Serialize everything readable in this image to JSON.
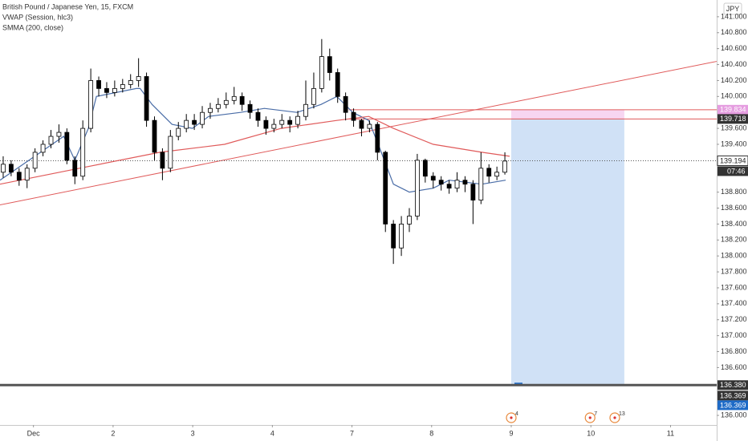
{
  "chart_data": {
    "type": "candlestick",
    "title": "British Pound / Japanese Yen, 15, FXCM",
    "currency": "JPY",
    "candle_color": "#000000",
    "x": [
      -0.38,
      -0.28,
      -0.18,
      -0.08,
      0.02,
      0.12,
      0.22,
      0.32,
      0.42,
      0.52,
      0.62,
      0.72,
      0.82,
      0.92,
      1.02,
      1.12,
      1.22,
      1.32,
      1.42,
      1.52,
      1.62,
      1.72,
      1.82,
      1.92,
      2.02,
      2.12,
      2.22,
      2.32,
      2.42,
      2.52,
      2.62,
      2.72,
      2.82,
      2.92,
      3.02,
      3.12,
      3.22,
      3.32,
      3.42,
      3.52,
      3.62,
      3.72,
      3.82,
      3.92,
      4.02,
      4.12,
      4.22,
      4.32,
      4.42,
      4.52,
      4.62,
      4.72,
      4.82,
      4.92,
      5.02,
      5.12,
      5.22,
      5.32,
      5.42,
      5.52,
      5.62,
      5.72,
      5.82,
      5.92
    ],
    "open": [
      139.05,
      139.15,
      139.05,
      138.95,
      139.1,
      139.3,
      139.4,
      139.5,
      139.55,
      139.2,
      139.0,
      139.6,
      140.2,
      140.1,
      140.05,
      140.1,
      140.15,
      140.2,
      140.25,
      139.7,
      139.3,
      139.1,
      139.5,
      139.6,
      139.7,
      139.65,
      139.8,
      139.85,
      139.9,
      139.95,
      140.0,
      139.9,
      139.8,
      139.7,
      139.6,
      139.65,
      139.7,
      139.65,
      139.75,
      139.9,
      140.1,
      140.5,
      140.3,
      140.0,
      139.8,
      139.7,
      139.6,
      139.65,
      139.3,
      138.4,
      138.1,
      138.4,
      138.5,
      139.2,
      139.0,
      138.95,
      138.9,
      138.85,
      138.95,
      138.9,
      138.7,
      139.1,
      139.0,
      139.05
    ],
    "high": [
      139.25,
      139.2,
      139.1,
      139.15,
      139.35,
      139.45,
      139.58,
      139.65,
      139.6,
      139.25,
      139.7,
      140.35,
      140.25,
      140.18,
      140.2,
      140.22,
      140.28,
      140.48,
      140.3,
      139.75,
      139.35,
      139.58,
      139.68,
      139.78,
      139.78,
      139.88,
      139.92,
      139.98,
      140.05,
      140.12,
      140.05,
      139.95,
      139.85,
      139.75,
      139.72,
      139.78,
      139.75,
      139.82,
      140.2,
      140.3,
      140.72,
      140.6,
      140.35,
      140.05,
      139.85,
      139.72,
      139.7,
      139.68,
      139.32,
      138.45,
      138.5,
      138.6,
      139.28,
      139.22,
      139.05,
      139.0,
      138.95,
      139.05,
      139.0,
      138.95,
      139.3,
      139.15,
      139.12,
      139.3
    ],
    "low": [
      138.98,
      139.0,
      138.88,
      138.85,
      139.05,
      139.25,
      139.35,
      139.42,
      139.15,
      138.9,
      138.95,
      139.55,
      140.0,
      139.98,
      140.0,
      140.05,
      140.1,
      140.12,
      139.62,
      139.2,
      138.95,
      139.05,
      139.45,
      139.55,
      139.58,
      139.6,
      139.72,
      139.8,
      139.85,
      139.9,
      139.82,
      139.72,
      139.62,
      139.52,
      139.55,
      139.6,
      139.55,
      139.6,
      139.7,
      139.85,
      140.05,
      140.2,
      139.92,
      139.7,
      139.62,
      139.5,
      139.55,
      139.2,
      138.3,
      137.9,
      138.0,
      138.3,
      138.45,
      138.92,
      138.85,
      138.82,
      138.78,
      138.8,
      138.8,
      138.4,
      138.65,
      138.92,
      138.95,
      139.02
    ],
    "close": [
      139.15,
      139.05,
      138.95,
      139.1,
      139.3,
      139.4,
      139.5,
      139.55,
      139.2,
      139.0,
      139.6,
      140.2,
      140.1,
      140.05,
      140.1,
      140.15,
      140.2,
      140.25,
      139.7,
      139.3,
      139.1,
      139.5,
      139.6,
      139.7,
      139.65,
      139.8,
      139.85,
      139.9,
      139.95,
      140.0,
      139.9,
      139.8,
      139.7,
      139.6,
      139.65,
      139.7,
      139.65,
      139.75,
      139.9,
      140.1,
      140.5,
      140.3,
      140.0,
      139.8,
      139.7,
      139.6,
      139.65,
      139.3,
      138.4,
      138.1,
      138.4,
      138.5,
      139.2,
      139.0,
      138.95,
      138.9,
      138.85,
      138.95,
      138.9,
      138.7,
      139.1,
      139.0,
      139.05,
      139.19
    ],
    "series": [
      {
        "name": "VWAP (Session, hlc3)",
        "color": "#4a6da7",
        "x": [
          -0.42,
          0.38,
          0.52,
          0.69,
          0.79,
          1.29,
          1.34,
          1.49,
          1.74,
          1.997,
          2.2,
          2.6,
          2.9,
          3.31,
          3.61,
          3.81,
          4.01,
          4.21,
          4.33,
          4.52,
          4.72,
          5.02,
          5.22,
          5.63,
          5.93
        ],
        "values": [
          138.95,
          139.5,
          139.2,
          139.6,
          140.0,
          140.1,
          140.1,
          139.9,
          139.65,
          139.6,
          139.75,
          139.8,
          139.85,
          139.8,
          139.9,
          140.0,
          139.8,
          139.7,
          139.4,
          138.9,
          138.8,
          138.85,
          138.95,
          138.9,
          138.95
        ]
      },
      {
        "name": "SMMA (200, close)",
        "color": "#e05a5a",
        "x": [
          -0.42,
          0.58,
          1.59,
          2.4,
          3.11,
          3.81,
          4.21,
          4.52,
          5.02,
          5.63,
          5.98
        ],
        "values": [
          138.9,
          139.1,
          139.3,
          139.4,
          139.6,
          139.7,
          139.75,
          139.6,
          139.4,
          139.3,
          139.25
        ]
      }
    ],
    "trendlines": [
      {
        "color": "#e05a5a",
        "x": [
          -0.42,
          8.58
        ],
        "values": [
          138.64,
          140.44
        ]
      }
    ],
    "levels": [
      {
        "color": "#e05a5a",
        "x": 3.96,
        "value": 139.834
      },
      {
        "color": "#e05a5a",
        "x": 3.96,
        "value": 139.718
      }
    ],
    "position": {
      "x": [
        6.0,
        7.42
      ],
      "stop": 139.834,
      "entry": 139.718,
      "target": {
        "value": 136.38,
        "label": "136.380"
      }
    },
    "last_price": 139.194,
    "countdown": "07:46",
    "extra_tags": [
      {
        "value": 136.369,
        "label": "136.369"
      },
      {
        "value": 136.369,
        "label": "136.369"
      }
    ],
    "events": [
      {
        "x": 6.0,
        "label": "4"
      },
      {
        "x": 6.99,
        "label": "7"
      },
      {
        "x": 7.3,
        "label": "13"
      }
    ],
    "xlim": [
      -0.42,
      8.58
    ],
    "xticks": [
      {
        "value": 0,
        "label": "Dec"
      },
      {
        "value": 1,
        "label": "2"
      },
      {
        "value": 2,
        "label": "3"
      },
      {
        "value": 3,
        "label": "4"
      },
      {
        "value": 4,
        "label": "7"
      },
      {
        "value": 5,
        "label": "8"
      },
      {
        "value": 6,
        "label": "9"
      },
      {
        "value": 7,
        "label": "10"
      },
      {
        "value": 8,
        "label": "11"
      }
    ],
    "ylim": [
      135.88,
      141.21
    ],
    "yticks": [
      {
        "value": 136,
        "label": "136.000"
      },
      {
        "value": 136.6,
        "label": "136.600"
      },
      {
        "value": 136.8,
        "label": "136.800"
      },
      {
        "value": 137,
        "label": "137.000"
      },
      {
        "value": 137.2,
        "label": "137.200"
      },
      {
        "value": 137.4,
        "label": "137.400"
      },
      {
        "value": 137.6,
        "label": "137.600"
      },
      {
        "value": 137.8,
        "label": "137.800"
      },
      {
        "value": 138,
        "label": "138.000"
      },
      {
        "value": 138.2,
        "label": "138.200"
      },
      {
        "value": 138.4,
        "label": "138.400"
      },
      {
        "value": 138.6,
        "label": "138.600"
      },
      {
        "value": 138.8,
        "label": "138.800"
      },
      {
        "value": 139.4,
        "label": "139.400"
      },
      {
        "value": 139.6,
        "label": "139.600"
      },
      {
        "value": 140,
        "label": "140.000"
      },
      {
        "value": 140.2,
        "label": "140.200"
      },
      {
        "value": 140.4,
        "label": "140.400"
      },
      {
        "value": 140.6,
        "label": "140.600"
      },
      {
        "value": 140.8,
        "label": "140.800"
      },
      {
        "value": 141,
        "label": "141.000"
      }
    ],
    "grid": false
  }
}
